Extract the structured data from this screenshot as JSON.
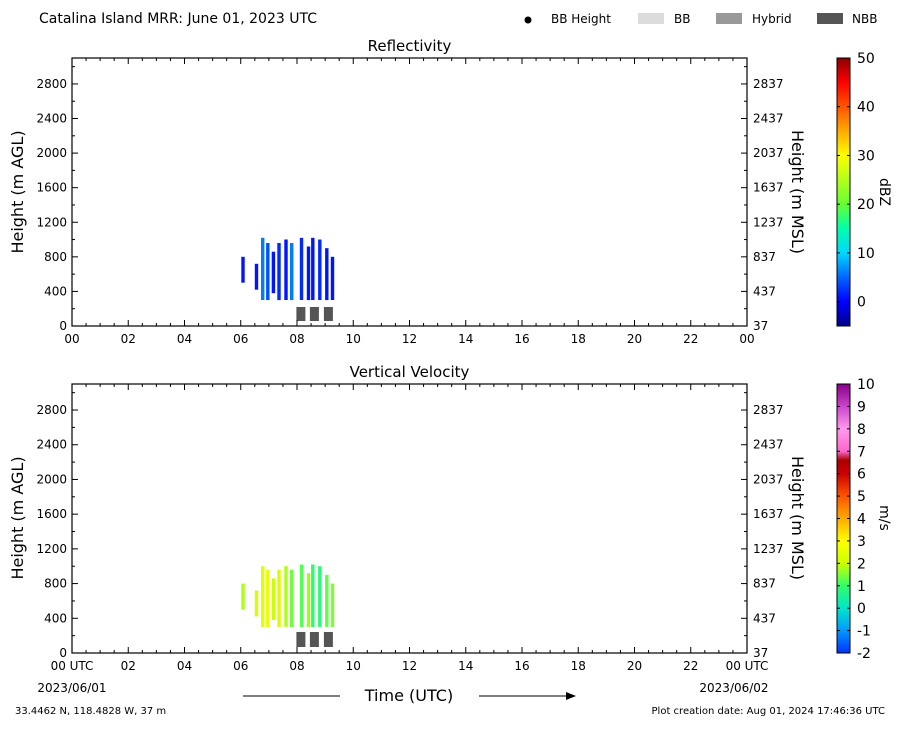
{
  "header": {
    "title": "Catalina Island MRR:  June 01, 2023 UTC",
    "legend": [
      {
        "label": "BB Height",
        "kind": "dot",
        "color": "#000000"
      },
      {
        "label": "BB",
        "kind": "rect",
        "color": "#dcdcdc"
      },
      {
        "label": "Hybrid",
        "kind": "rect",
        "color": "#999999"
      },
      {
        "label": "NBB",
        "kind": "rect",
        "color": "#555555"
      }
    ]
  },
  "footer": {
    "location": "33.4462 N, 118.4828 W, 37 m",
    "creation": "Plot creation date: Aug 01, 2024 17:46:36 UTC",
    "time_label": "Time (UTC)",
    "start_date": "2023/06/01",
    "end_date": "2023/06/02"
  },
  "chart_data": [
    {
      "type": "heatmap",
      "title": "Reflectivity",
      "ylabel": "Height (m AGL)",
      "ylabel_right": "Height (m MSL)",
      "x_ticks": [
        "00",
        "02",
        "04",
        "06",
        "08",
        "10",
        "12",
        "14",
        "16",
        "18",
        "20",
        "22",
        "00"
      ],
      "xlim": [
        0,
        24
      ],
      "ylim": [
        0,
        3100
      ],
      "y_ticks_left": [
        0,
        400,
        800,
        1200,
        1600,
        2000,
        2400,
        2800
      ],
      "y_ticks_right": [
        37,
        437,
        837,
        1237,
        1637,
        2037,
        2437,
        2837
      ],
      "colorbar": {
        "label": "dBZ",
        "range": [
          -5,
          50
        ],
        "ticks": [
          0,
          10,
          20,
          30,
          40,
          50
        ],
        "stops": [
          [
            -5,
            "#00008b"
          ],
          [
            0,
            "#0000ff"
          ],
          [
            5,
            "#0066ff"
          ],
          [
            10,
            "#00d8ff"
          ],
          [
            15,
            "#00ffaa"
          ],
          [
            20,
            "#66ff33"
          ],
          [
            30,
            "#ffff00"
          ],
          [
            35,
            "#ffaa00"
          ],
          [
            40,
            "#ff5500"
          ],
          [
            45,
            "#ff0000"
          ],
          [
            50,
            "#8b0000"
          ]
        ]
      },
      "echo_columns": [
        {
          "t": 6.02,
          "z0": 500,
          "z1": 800,
          "v": 1
        },
        {
          "t": 6.5,
          "z0": 420,
          "z1": 720,
          "v": 1
        },
        {
          "t": 6.72,
          "z0": 300,
          "z1": 1020,
          "v": 6
        },
        {
          "t": 6.9,
          "z0": 300,
          "z1": 960,
          "v": 4
        },
        {
          "t": 7.1,
          "z0": 380,
          "z1": 860,
          "v": 1
        },
        {
          "t": 7.3,
          "z0": 300,
          "z1": 960,
          "v": 2
        },
        {
          "t": 7.55,
          "z0": 300,
          "z1": 1000,
          "v": 1
        },
        {
          "t": 7.75,
          "z0": 300,
          "z1": 960,
          "v": 6
        },
        {
          "t": 8.1,
          "z0": 300,
          "z1": 1020,
          "v": 2
        },
        {
          "t": 8.35,
          "z0": 300,
          "z1": 920,
          "v": 1
        },
        {
          "t": 8.5,
          "z0": 300,
          "z1": 1020,
          "v": 1
        },
        {
          "t": 8.75,
          "z0": 300,
          "z1": 1000,
          "v": 2
        },
        {
          "t": 9.0,
          "z0": 300,
          "z1": 900,
          "v": 1
        },
        {
          "t": 9.2,
          "z0": 300,
          "z1": 800,
          "v": 1
        }
      ],
      "bright_band_flags": [
        {
          "t": 8.12,
          "type": "NBB"
        },
        {
          "t": 8.6,
          "type": "NBB"
        },
        {
          "t": 9.1,
          "type": "NBB"
        }
      ]
    },
    {
      "type": "heatmap",
      "title": "Vertical Velocity",
      "ylabel": "Height (m AGL)",
      "ylabel_right": "Height (m MSL)",
      "x_ticks": [
        "00 UTC",
        "02",
        "04",
        "06",
        "08",
        "10",
        "12",
        "14",
        "16",
        "18",
        "20",
        "22",
        "00 UTC"
      ],
      "xlim": [
        0,
        24
      ],
      "ylim": [
        0,
        3100
      ],
      "y_ticks_left": [
        0,
        400,
        800,
        1200,
        1600,
        2000,
        2400,
        2800
      ],
      "y_ticks_right": [
        37,
        437,
        837,
        1237,
        1637,
        2037,
        2437,
        2837
      ],
      "colorbar": {
        "label": "m/s",
        "range": [
          -2,
          10
        ],
        "ticks": [
          -2,
          -1,
          0,
          1,
          2,
          3,
          4,
          5,
          6,
          7,
          8,
          9,
          10
        ],
        "stops": [
          [
            -2,
            "#0033ff"
          ],
          [
            -1,
            "#0099ff"
          ],
          [
            0,
            "#00e5cc"
          ],
          [
            1,
            "#33ff66"
          ],
          [
            2,
            "#ccff00"
          ],
          [
            3,
            "#ffff00"
          ],
          [
            4,
            "#ffaa00"
          ],
          [
            5,
            "#ff5500"
          ],
          [
            6,
            "#cc0000"
          ],
          [
            6.6,
            "#aa0000"
          ],
          [
            7,
            "#ff66cc"
          ],
          [
            8,
            "#ff99ee"
          ],
          [
            9,
            "#cc44cc"
          ],
          [
            10,
            "#880088"
          ]
        ]
      },
      "echo_columns": [
        {
          "t": 6.02,
          "z0": 500,
          "z1": 800,
          "v": 1.8
        },
        {
          "t": 6.5,
          "z0": 420,
          "z1": 720,
          "v": 2.2
        },
        {
          "t": 6.72,
          "z0": 300,
          "z1": 1000,
          "v": 2.4
        },
        {
          "t": 6.9,
          "z0": 300,
          "z1": 960,
          "v": 2.6
        },
        {
          "t": 7.1,
          "z0": 380,
          "z1": 860,
          "v": 2.0
        },
        {
          "t": 7.3,
          "z0": 300,
          "z1": 960,
          "v": 2.3
        },
        {
          "t": 7.55,
          "z0": 300,
          "z1": 1000,
          "v": 1.8
        },
        {
          "t": 7.75,
          "z0": 300,
          "z1": 960,
          "v": 1.4
        },
        {
          "t": 8.1,
          "z0": 300,
          "z1": 1020,
          "v": 1.2
        },
        {
          "t": 8.35,
          "z0": 300,
          "z1": 920,
          "v": 1.7
        },
        {
          "t": 8.5,
          "z0": 300,
          "z1": 1020,
          "v": 0.9
        },
        {
          "t": 8.75,
          "z0": 300,
          "z1": 1000,
          "v": 0.8
        },
        {
          "t": 9.0,
          "z0": 300,
          "z1": 900,
          "v": 1.3
        },
        {
          "t": 9.2,
          "z0": 300,
          "z1": 800,
          "v": 1.5
        }
      ],
      "bright_band_flags": [
        {
          "t": 8.12,
          "type": "NBB"
        },
        {
          "t": 8.6,
          "type": "NBB"
        },
        {
          "t": 9.1,
          "type": "NBB"
        }
      ]
    }
  ]
}
